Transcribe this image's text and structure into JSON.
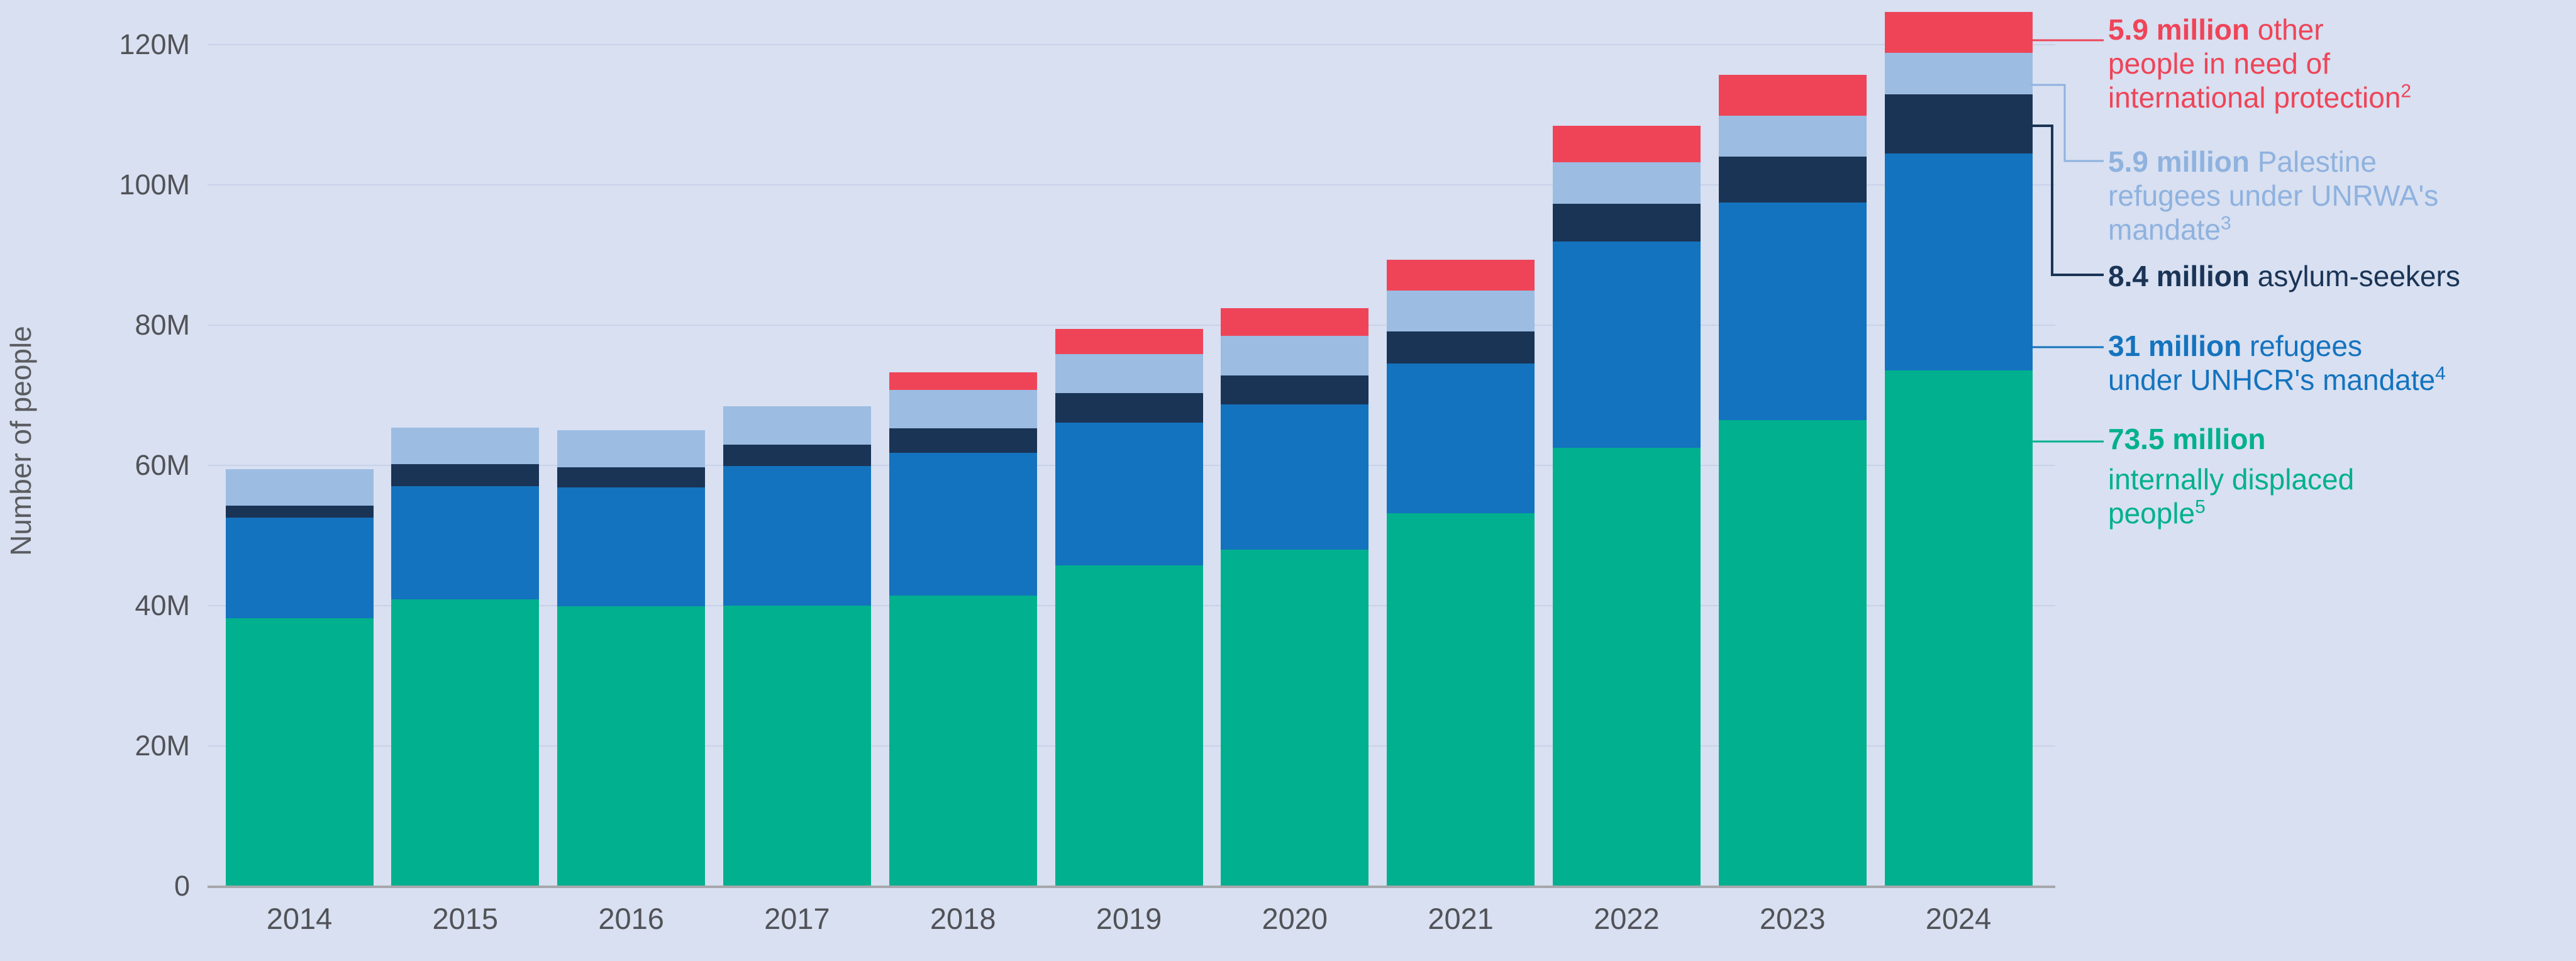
{
  "chart_data": {
    "type": "bar",
    "stacked": true,
    "title": "",
    "xlabel": "",
    "ylabel": "Number of people",
    "unit": "millions of people",
    "ylim": [
      0,
      125
    ],
    "grid": true,
    "legend_position": "right",
    "y_ticks": [
      "0",
      "20M",
      "40M",
      "60M",
      "80M",
      "100M",
      "120M"
    ],
    "categories": [
      "2014",
      "2015",
      "2016",
      "2017",
      "2018",
      "2019",
      "2020",
      "2021",
      "2022",
      "2023",
      "2024"
    ],
    "series": [
      {
        "id": "idp",
        "name": "Internally displaced people",
        "color": "#00B08E",
        "values": [
          38.2,
          40.9,
          39.9,
          40.0,
          41.4,
          45.7,
          48.0,
          53.2,
          62.5,
          66.5,
          73.5
        ]
      },
      {
        "id": "refugees",
        "name": "Refugees under UNHCR's mandate",
        "color": "#1473BE",
        "values": [
          14.4,
          16.1,
          17.0,
          19.9,
          20.4,
          20.4,
          20.7,
          21.3,
          29.4,
          31.0,
          31.0
        ]
      },
      {
        "id": "asylum",
        "name": "Asylum-seekers",
        "color": "#1A3456",
        "values": [
          1.7,
          3.2,
          2.8,
          3.1,
          3.5,
          4.2,
          4.1,
          4.6,
          5.4,
          6.5,
          8.4
        ]
      },
      {
        "id": "unrwa",
        "name": "Palestine refugees under UNRWA's mandate",
        "color": "#9CBCE2",
        "values": [
          5.2,
          5.2,
          5.3,
          5.4,
          5.5,
          5.6,
          5.7,
          5.8,
          5.9,
          5.9,
          5.9
        ]
      },
      {
        "id": "oip",
        "name": "Other people in need of international protection",
        "color": "#EF4458",
        "values": [
          0,
          0,
          0,
          0,
          2.5,
          3.6,
          3.9,
          4.4,
          5.2,
          5.8,
          5.9
        ]
      }
    ]
  },
  "legend": {
    "items": [
      {
        "id": "oip",
        "color": "#EF4458",
        "bold": "5.9 million",
        "tail": " other",
        "line2": "people in need of",
        "line3": "international protection",
        "footnote": "2"
      },
      {
        "id": "unrwa",
        "color": "#8FB2DF",
        "bold": "5.9 million",
        "tail": " Palestine",
        "line2": "refugees under UNRWA's",
        "line3": "mandate",
        "footnote": "3"
      },
      {
        "id": "asylum",
        "color": "#1A3456",
        "bold": "8.4 million",
        "tail": " asylum-seekers",
        "footnote": ""
      },
      {
        "id": "refugees",
        "color": "#1473BE",
        "bold": "31 million",
        "tail": " refugees",
        "line2": "under UNHCR's mandate",
        "footnote": "4"
      },
      {
        "id": "idp",
        "color": "#00B08E",
        "bold": "73.5 million",
        "line2": "internally displaced",
        "line3": "people",
        "footnote": "5"
      }
    ]
  },
  "colors": {
    "background": "#D8E0F1",
    "gridline": "#C8D2E9",
    "axis_line": "#A6A8AC",
    "axis_text": "#515257"
  }
}
